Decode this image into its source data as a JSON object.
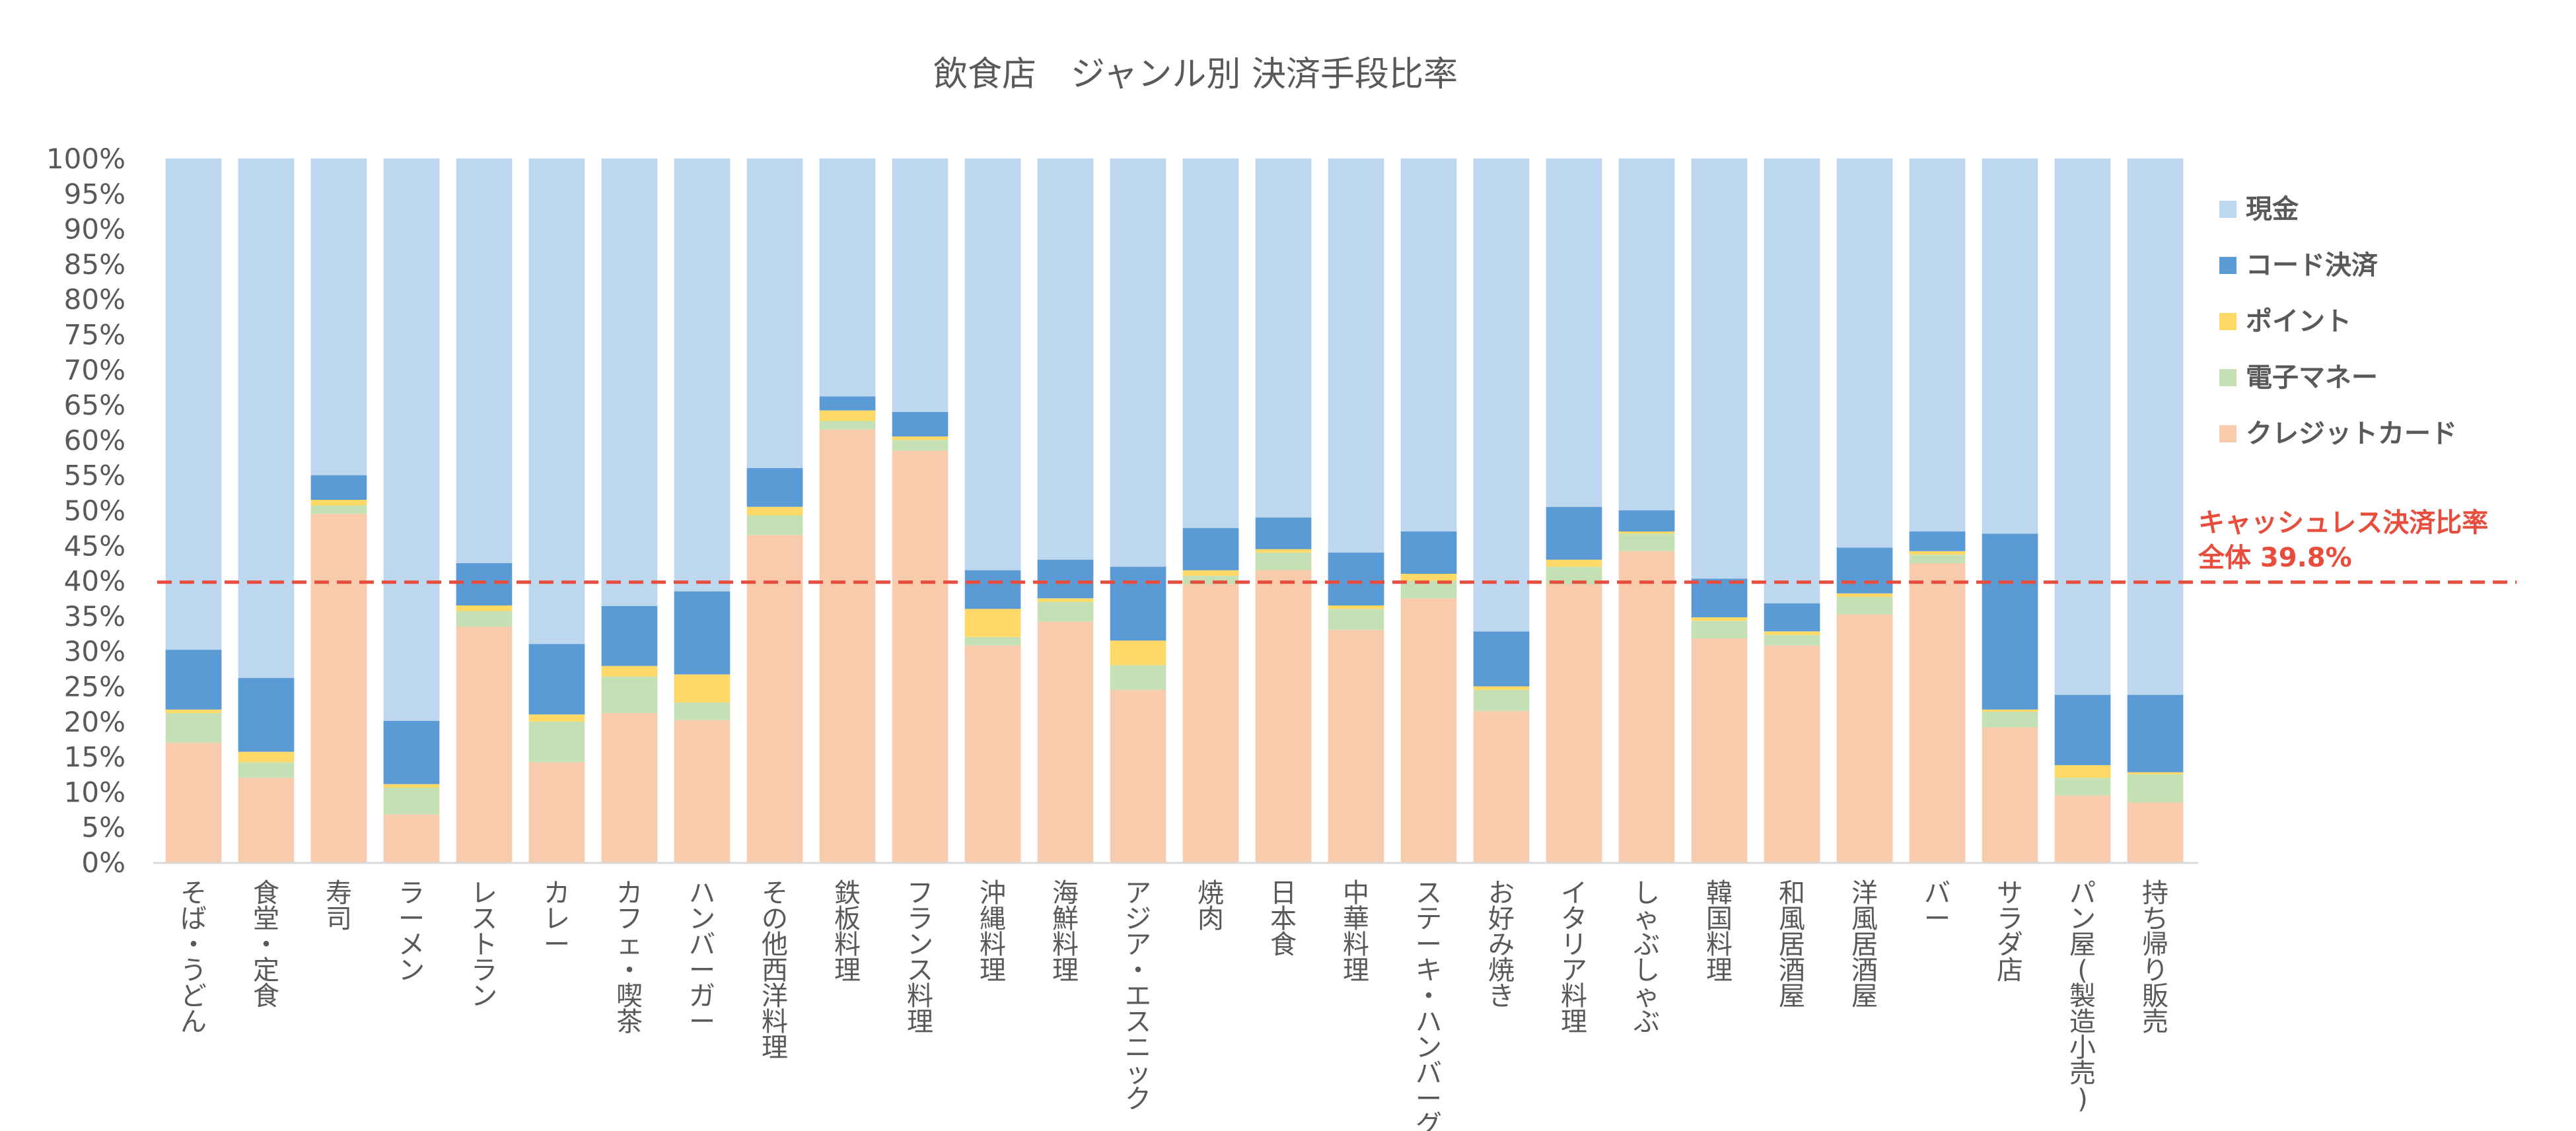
{
  "chart_data": {
    "type": "bar",
    "stacked": true,
    "title": "飲食店　ジャンル別 決済手段比率",
    "xlabel": "",
    "ylabel": "",
    "ylim": [
      0,
      100
    ],
    "yticks": [
      "0%",
      "5%",
      "10%",
      "15%",
      "20%",
      "25%",
      "30%",
      "35%",
      "40%",
      "45%",
      "50%",
      "55%",
      "60%",
      "65%",
      "70%",
      "75%",
      "80%",
      "85%",
      "90%",
      "95%",
      "100%"
    ],
    "categories": [
      "そば・うどん",
      "食堂・定食",
      "寿司",
      "ラーメン",
      "レストラン",
      "カレー",
      "カフェ・喫茶",
      "ハンバーガー",
      "その他西洋料理",
      "鉄板料理",
      "フランス料理",
      "沖縄料理",
      "海鮮料理",
      "アジア・エスニック",
      "焼肉",
      "日本食",
      "中華料理",
      "ステーキ・ハンバーグ",
      "お好み焼き",
      "イタリア料理",
      "しゃぶしゃぶ",
      "韓国料理",
      "和風居酒屋",
      "洋風居酒屋",
      "バー",
      "サラダ店",
      "パン屋(製造小売)",
      "持ち帰り販売"
    ],
    "series": [
      {
        "name": "クレジットカード",
        "color": "#f8cbad",
        "values": [
          17.0,
          12.0,
          49.5,
          6.8,
          33.5,
          14.2,
          21.2,
          20.2,
          46.5,
          61.5,
          58.5,
          30.8,
          34.2,
          24.5,
          39.5,
          41.5,
          33.0,
          37.5,
          21.5,
          39.5,
          44.2,
          31.8,
          30.8,
          35.2,
          42.5,
          19.2,
          9.5,
          8.5
        ]
      },
      {
        "name": "電子マネー",
        "color": "#c5e0b4",
        "values": [
          4.2,
          2.2,
          1.2,
          3.8,
          2.2,
          5.8,
          5.2,
          2.5,
          2.8,
          1.2,
          1.5,
          1.2,
          2.8,
          3.5,
          1.2,
          2.5,
          3.0,
          2.5,
          3.0,
          2.5,
          2.5,
          2.5,
          1.5,
          2.5,
          1.2,
          2.2,
          2.5,
          4.0
        ]
      },
      {
        "name": "ポイント",
        "color": "#ffd966",
        "values": [
          0.5,
          1.5,
          0.8,
          0.5,
          0.8,
          1.0,
          1.5,
          4.0,
          1.2,
          1.5,
          0.5,
          4.0,
          0.5,
          3.5,
          0.8,
          0.5,
          0.5,
          1.0,
          0.5,
          1.0,
          0.3,
          0.5,
          0.5,
          0.5,
          0.5,
          0.3,
          1.8,
          0.3
        ]
      },
      {
        "name": "コード決済",
        "color": "#5b9bd5",
        "values": [
          8.5,
          10.5,
          3.5,
          9.0,
          6.0,
          10.0,
          8.5,
          11.8,
          5.5,
          2.0,
          3.5,
          5.5,
          5.5,
          10.5,
          6.0,
          4.5,
          7.5,
          6.0,
          7.8,
          7.5,
          3.0,
          5.5,
          4.0,
          6.5,
          2.8,
          25.0,
          10.0,
          11.0
        ]
      },
      {
        "name": "現金",
        "color": "#bdd7ee",
        "values": [
          69.8,
          73.8,
          45.0,
          79.9,
          57.5,
          69.0,
          63.6,
          61.5,
          44.0,
          33.8,
          36.0,
          58.5,
          57.0,
          58.0,
          52.5,
          51.0,
          56.0,
          53.0,
          67.2,
          49.5,
          50.0,
          59.7,
          63.2,
          55.3,
          53.0,
          53.3,
          76.2,
          76.2
        ]
      }
    ],
    "legend_position": "right",
    "legend_order": [
      "現金",
      "コード決済",
      "ポイント",
      "電子マネー",
      "クレジットカード"
    ],
    "reference_line": {
      "value": 39.8,
      "label_line1": "キャッシュレス決済比率",
      "label_line2": "全体 39.8%",
      "color": "#e84c3d"
    }
  }
}
